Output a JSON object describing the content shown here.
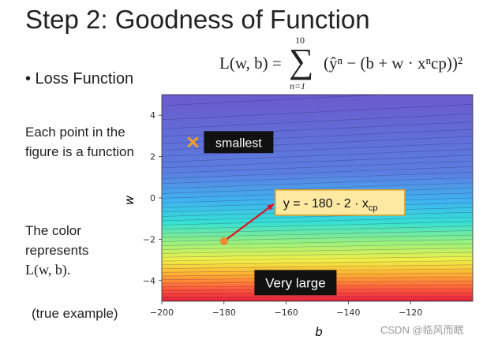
{
  "slide": {
    "title": "Step 2: Goodness of Function",
    "bullet": "• Loss Function",
    "formula": {
      "lhs": "L(w, b) =",
      "sum": "∑",
      "upper": "10",
      "lower": "n=1",
      "body_text": "(ŷⁿ − (b + w · xⁿcp))²"
    },
    "side_texts": [
      "Each point in the figure is a function",
      "The color represents"
    ],
    "side_math": "L(w, b).",
    "footnote": "(true example)"
  },
  "chart_data": {
    "type": "heatmap",
    "title": "",
    "xlabel": "b",
    "ylabel": "w",
    "xlim": [
      -200,
      -100
    ],
    "ylim": [
      -5,
      5
    ],
    "x_ticks": [
      -200,
      -180,
      -160,
      -140,
      -120
    ],
    "y_ticks": [
      4,
      2,
      0,
      -2,
      -4
    ],
    "x_tick_labels": [
      "−200",
      "−180",
      "−160",
      "−140",
      "−120"
    ],
    "y_tick_labels": [
      "4",
      "2",
      "0",
      "−2",
      "−4"
    ],
    "colormap_colors": [
      "#6a5acd",
      "#5b7fe0",
      "#3fb4f0",
      "#36e0d2",
      "#9cf27a",
      "#f0f046",
      "#ffb030",
      "#ff5a3a",
      "#e8203a"
    ],
    "annotations": [
      {
        "kind": "marker",
        "label": "smallest",
        "marker": "x",
        "b": -190,
        "w": 2.7,
        "color": "#f0a020"
      },
      {
        "kind": "point",
        "label": "y = - 180 - 2 · x",
        "label_sub": "cp",
        "b": -180,
        "w": -2.1,
        "color": "#f08a30",
        "arrow_to_b": -164,
        "arrow_to_w": -0.3,
        "arrow_color": "#e01020"
      },
      {
        "kind": "label",
        "label": "Very large",
        "b": -157,
        "w": -4.1
      }
    ]
  },
  "watermark": "CSDN @临风而眠"
}
